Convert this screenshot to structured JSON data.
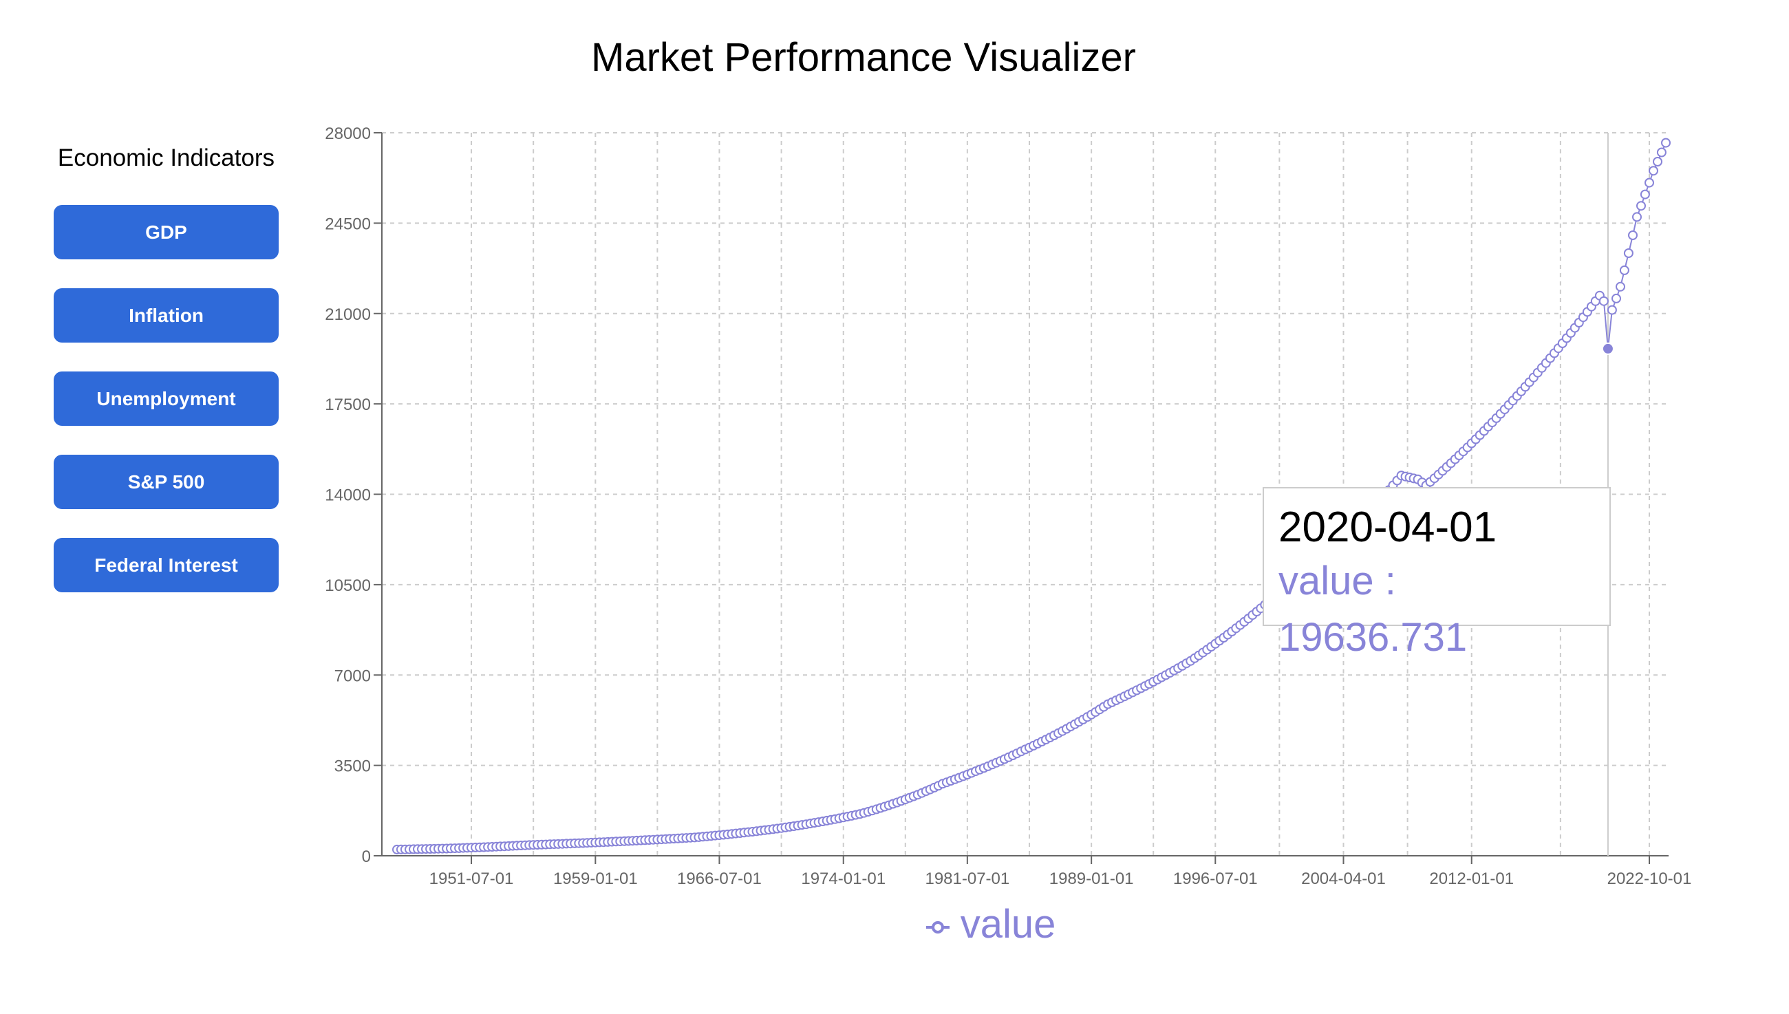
{
  "page": {
    "title": "Market Performance Visualizer"
  },
  "sidebar": {
    "heading": "Economic Indicators",
    "button_color": "#2f6ad9",
    "buttons": [
      {
        "label": "GDP"
      },
      {
        "label": "Inflation"
      },
      {
        "label": "Unemployment"
      },
      {
        "label": "S&P 500"
      },
      {
        "label": "Federal Interest"
      }
    ]
  },
  "tooltip": {
    "label": "2020-04-01",
    "value_text": "value : 19636.731"
  },
  "legend": {
    "label": "value"
  },
  "colors": {
    "series": "#8884d8",
    "grid": "#cccccc",
    "axis": "#666666",
    "tick_text": "#666666"
  },
  "chart_data": {
    "type": "line",
    "x_axis": "quarterly dates",
    "x_start": "1947-01-01",
    "x_end": "2023-10-01",
    "x_tick_labels": [
      "1951-07-01",
      "1959-01-01",
      "1966-07-01",
      "1974-01-01",
      "1981-07-01",
      "1989-01-01",
      "1996-07-01",
      "2004-04-01",
      "2012-01-01",
      "2022-10-01"
    ],
    "y_ticks": [
      0,
      3500,
      7000,
      10500,
      14000,
      17500,
      21000,
      24500,
      28000
    ],
    "ylim": [
      0,
      28000
    ],
    "grid": true,
    "legend": "bottom-center",
    "series": [
      {
        "name": "value",
        "points": [
          [
            "1947-01-01",
            243
          ],
          [
            "1950-01-01",
            280
          ],
          [
            "1955-01-01",
            415
          ],
          [
            "1960-01-01",
            543
          ],
          [
            "1965-01-01",
            709
          ],
          [
            "1970-01-01",
            1051
          ],
          [
            "1975-01-01",
            1616
          ],
          [
            "1980-01-01",
            2789
          ],
          [
            "1982-01-01",
            3274
          ],
          [
            "1985-01-01",
            4119
          ],
          [
            "1990-01-01",
            5872
          ],
          [
            "1995-01-01",
            7545
          ],
          [
            "2000-01-01",
            10002
          ],
          [
            "2005-01-01",
            12762
          ],
          [
            "2007-10-01",
            14726
          ],
          [
            "2008-10-01",
            14578
          ],
          [
            "2009-04-01",
            14340
          ],
          [
            "2010-01-01",
            14764
          ],
          [
            "2012-01-01",
            15973
          ],
          [
            "2015-01-01",
            17985
          ],
          [
            "2019-10-01",
            21694
          ],
          [
            "2020-01-01",
            21481
          ],
          [
            "2020-04-01",
            19636.731
          ],
          [
            "2020-07-01",
            21138
          ],
          [
            "2021-01-01",
            22038
          ],
          [
            "2022-01-01",
            24740
          ],
          [
            "2023-01-01",
            26530
          ],
          [
            "2023-10-01",
            27610
          ]
        ]
      }
    ],
    "highlighted_point": {
      "x": "2020-04-01",
      "y": 19636.731
    }
  }
}
